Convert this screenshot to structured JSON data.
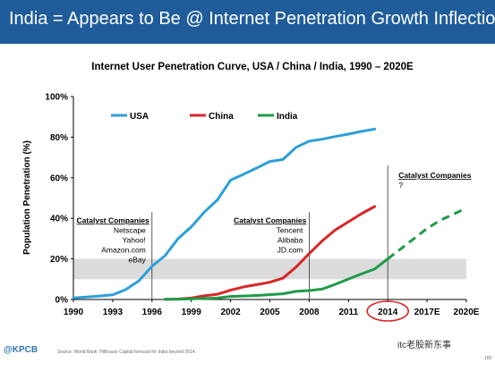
{
  "header": {
    "title": "India = Appears to Be @ Internet Penetration Growth Inflection"
  },
  "footer": {
    "source": "Source: World Bank, Hillhouse Capital forecast for India beyond 2014.",
    "brand": "@KPCB",
    "page": "165",
    "watermark": "itc老股新东事"
  },
  "colors": {
    "header_bg": "#1f5c99",
    "usa": "#2d9fd8",
    "china": "#d9262a",
    "india": "#1f9b4a",
    "band": "#dcdcdc",
    "highlight_circle": "#d9262a"
  },
  "chart_data": {
    "type": "line",
    "title": "Internet User Penetration Curve, USA / China / India, 1990 – 2020E",
    "ylabel": "Population Penetration (%)",
    "xlabel": "",
    "xlim": [
      1990,
      2020
    ],
    "ylim": [
      0,
      100
    ],
    "x_ticks": [
      {
        "value": 1990,
        "label": "1990"
      },
      {
        "value": 1993,
        "label": "1993"
      },
      {
        "value": 1996,
        "label": "1996"
      },
      {
        "value": 1999,
        "label": "1999"
      },
      {
        "value": 2002,
        "label": "2002"
      },
      {
        "value": 2005,
        "label": "2005"
      },
      {
        "value": 2008,
        "label": "2008"
      },
      {
        "value": 2011,
        "label": "2011"
      },
      {
        "value": 2014,
        "label": "2014"
      },
      {
        "value": 2017,
        "label": "2017E"
      },
      {
        "value": 2020,
        "label": "2020E"
      }
    ],
    "y_ticks": [
      {
        "value": 0,
        "label": "0%"
      },
      {
        "value": 20,
        "label": "20%"
      },
      {
        "value": 40,
        "label": "40%"
      },
      {
        "value": 60,
        "label": "60%"
      },
      {
        "value": 80,
        "label": "80%"
      },
      {
        "value": 100,
        "label": "100%"
      }
    ],
    "highlight_band": [
      10,
      20
    ],
    "highlighted_tick": "2014",
    "legend_position": "top-left",
    "series": [
      {
        "name": "USA",
        "color": "#2d9fd8",
        "x": [
          1990,
          1991,
          1992,
          1993,
          1994,
          1995,
          1996,
          1997,
          1998,
          1999,
          2000,
          2001,
          2002,
          2003,
          2004,
          2005,
          2006,
          2007,
          2008,
          2009,
          2010,
          2011,
          2012,
          2013
        ],
        "y": [
          0.8,
          1.2,
          1.7,
          2.3,
          4.9,
          9.2,
          16.4,
          21.6,
          30.1,
          35.8,
          43.1,
          49.1,
          58.8,
          61.7,
          64.8,
          68,
          69,
          75,
          78,
          79,
          80.3,
          81.5,
          82.8,
          84
        ]
      },
      {
        "name": "China",
        "color": "#d9262a",
        "x": [
          1997,
          1998,
          1999,
          2000,
          2001,
          2002,
          2003,
          2004,
          2005,
          2006,
          2007,
          2008,
          2009,
          2010,
          2011,
          2012,
          2013
        ],
        "y": [
          0.03,
          0.2,
          0.7,
          1.8,
          2.6,
          4.6,
          6.2,
          7.3,
          8.5,
          10.5,
          16,
          22.6,
          28.9,
          34.3,
          38.3,
          42.3,
          45.8
        ]
      },
      {
        "name": "India",
        "color": "#1f9b4a",
        "x": [
          1997,
          1998,
          1999,
          2000,
          2001,
          2002,
          2003,
          2004,
          2005,
          2006,
          2007,
          2008,
          2009,
          2010,
          2011,
          2012,
          2013,
          2014
        ],
        "y": [
          0.07,
          0.1,
          0.3,
          0.5,
          0.7,
          1.5,
          1.7,
          2,
          2.4,
          2.8,
          4,
          4.4,
          5.1,
          7.5,
          10.1,
          12.6,
          15,
          20
        ]
      },
      {
        "name": "India",
        "color": "#1f9b4a",
        "dashed": true,
        "in_legend": false,
        "x": [
          2014,
          2015,
          2016,
          2017,
          2018,
          2019,
          2020
        ],
        "y": [
          20,
          25,
          30,
          35,
          39,
          42,
          45
        ]
      }
    ],
    "annotations": [
      {
        "x": 1996,
        "lines": [
          "Catalyst Companies",
          "Netscape",
          "Yahoo!",
          "Amazon.com",
          "eBay"
        ],
        "side": "left",
        "line_top": 43
      },
      {
        "x": 2008,
        "lines": [
          "Catalyst Companies",
          "Tencent",
          "Alibaba",
          "JD.com"
        ],
        "side": "left",
        "line_top": 43
      },
      {
        "x": 2014,
        "lines": [
          "Catalyst Companies",
          "?"
        ],
        "side": "right",
        "line_top": 66
      }
    ]
  }
}
